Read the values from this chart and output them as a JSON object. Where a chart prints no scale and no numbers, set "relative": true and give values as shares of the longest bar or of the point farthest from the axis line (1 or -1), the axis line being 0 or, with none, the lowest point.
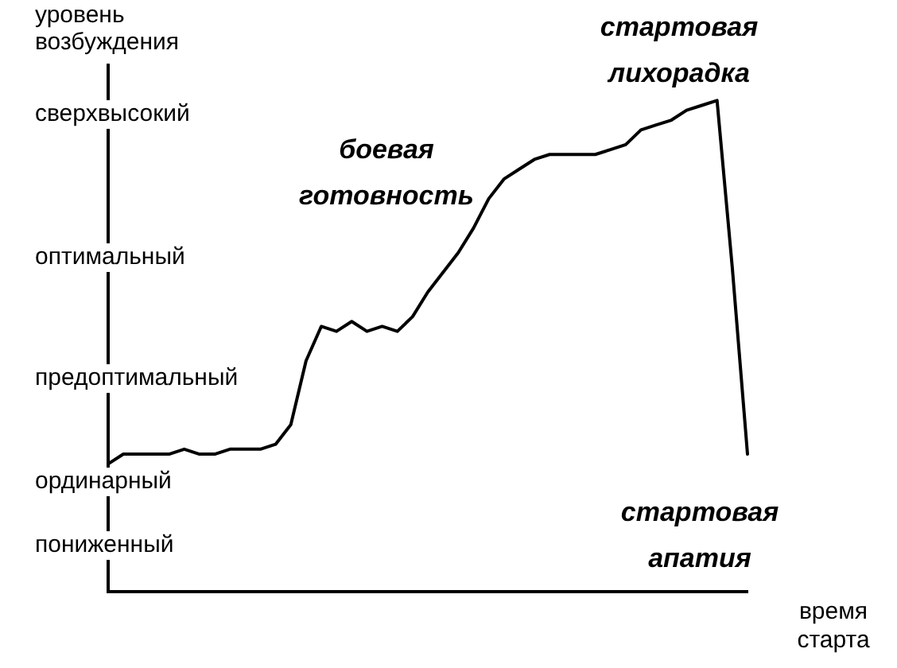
{
  "chart_data": {
    "type": "line",
    "ylabel": "уровень возбуждения",
    "xlabel": "время старта",
    "categories": [
      null,
      null,
      null,
      null,
      null,
      null,
      null,
      null,
      null,
      null,
      null,
      null,
      null,
      null,
      null,
      null,
      null,
      null,
      null,
      null,
      null,
      null,
      null,
      null,
      null,
      null,
      null,
      null,
      null,
      null,
      null,
      null,
      null,
      null,
      null,
      null,
      null,
      null,
      null,
      null,
      null,
      null,
      null
    ],
    "series": [
      {
        "color": "#000000",
        "values": [
          0.26,
          0.28,
          0.28,
          0.28,
          0.28,
          0.29,
          0.28,
          0.28,
          0.29,
          0.29,
          0.29,
          0.3,
          0.34,
          0.47,
          0.54,
          0.53,
          0.55,
          0.53,
          0.54,
          0.53,
          0.56,
          0.61,
          0.65,
          0.69,
          0.74,
          0.8,
          0.84,
          0.86,
          0.88,
          0.89,
          0.89,
          0.89,
          0.89,
          0.9,
          0.91,
          0.94,
          0.95,
          0.96,
          0.98,
          0.99,
          1,
          0.66,
          0.28
        ]
      }
    ],
    "relative": true,
    "grid": false,
    "legend": false,
    "marker": "none",
    "line_style": "solid",
    "annotations": [
      "сверхвысокий",
      "оптимальный",
      "предоптимальный",
      "ординарный",
      "пониженный",
      "боевая готовность",
      "стартовая лихорадка",
      "стартовая апатия"
    ]
  }
}
